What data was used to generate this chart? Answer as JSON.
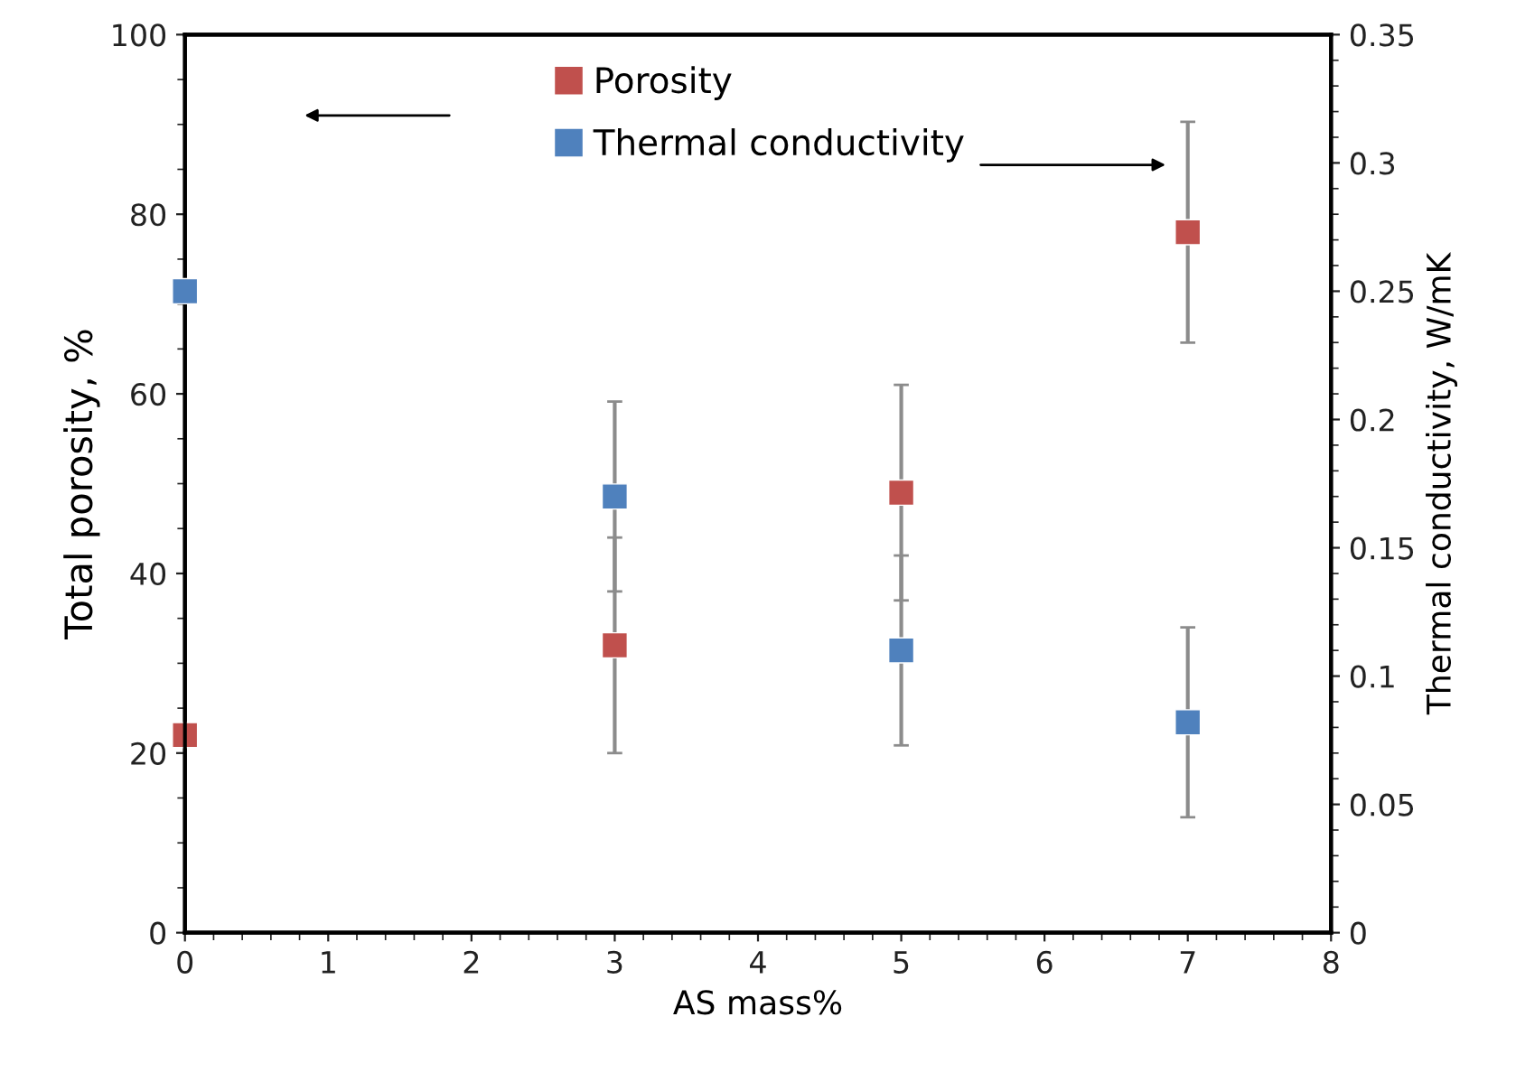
{
  "chart_data": {
    "type": "scatter",
    "xlabel": "AS mass%",
    "ylabel": "Total porosity, %",
    "y2label": "Thermal conductivity, W/mK",
    "x": [
      0,
      3,
      5,
      7
    ],
    "series": [
      {
        "name": "Porosity",
        "color": "#c0504d",
        "values": [
          22,
          32,
          49,
          78
        ],
        "errors": [
          null,
          12,
          12,
          12.3
        ]
      },
      {
        "name": "Thermal conductivity",
        "color": "#4f81bd",
        "axis": "y2",
        "values": [
          0.25,
          0.17,
          0.11,
          0.082
        ],
        "errors": [
          null,
          0.037,
          0.037,
          0.037
        ]
      }
    ],
    "xlim": [
      0,
      8
    ],
    "xticks": [
      0,
      1,
      2,
      3,
      4,
      5,
      6,
      7,
      8
    ],
    "ylim": [
      0,
      100
    ],
    "yticks": [
      0,
      20,
      40,
      60,
      80,
      100
    ],
    "y2lim": [
      0,
      0.35
    ],
    "y2ticks": [
      0,
      0.05,
      0.1,
      0.15,
      0.2,
      0.25,
      0.3,
      0.35
    ],
    "marker": "square",
    "legend": "top",
    "grid": false
  }
}
